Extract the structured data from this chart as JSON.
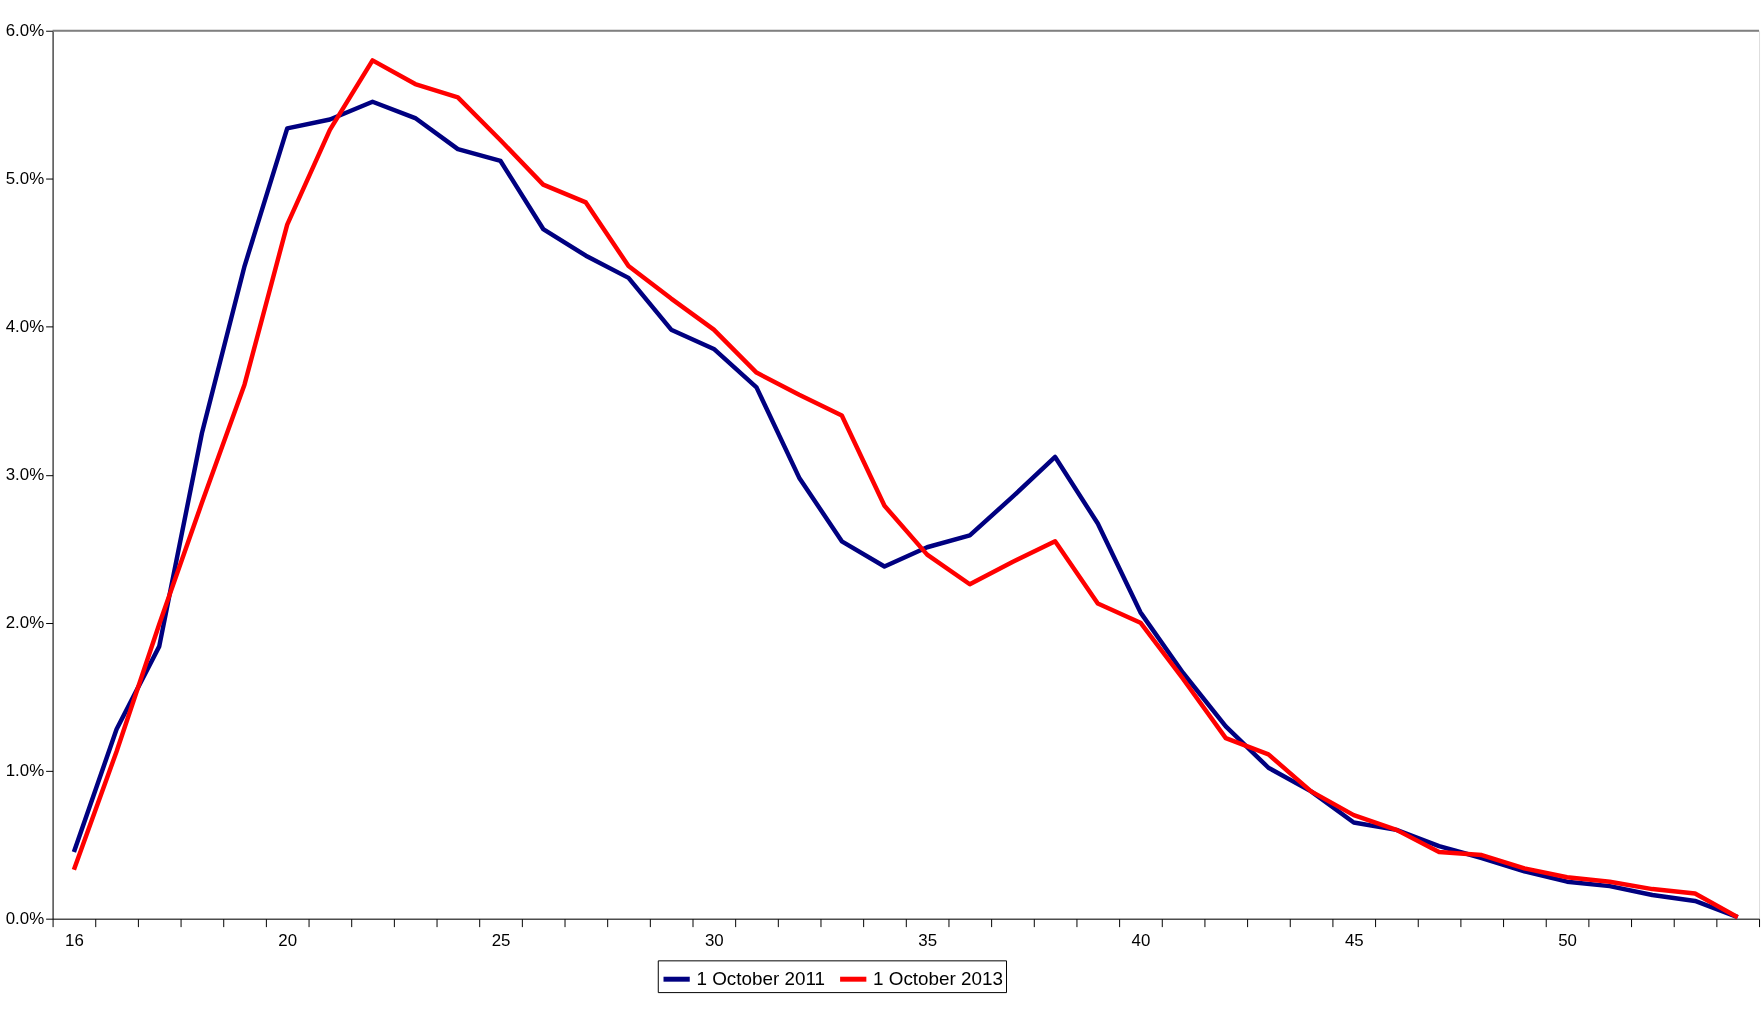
{
  "chart_data": {
    "type": "line",
    "categories": [
      "16",
      null,
      null,
      null,
      null,
      "20",
      null,
      null,
      null,
      null,
      "25",
      null,
      null,
      null,
      null,
      "30",
      null,
      null,
      null,
      null,
      "35",
      null,
      null,
      null,
      null,
      "40",
      null,
      null,
      null,
      null,
      "45",
      null,
      null,
      null,
      null,
      "50",
      null,
      null,
      null,
      null
    ],
    "series": [
      {
        "name": "1 October 2011",
        "color": "#000080",
        "values": [
          0.45,
          1.28,
          1.84,
          3.28,
          4.41,
          5.34,
          5.4,
          5.52,
          5.41,
          5.2,
          5.12,
          4.66,
          4.48,
          4.33,
          3.98,
          3.85,
          3.59,
          2.98,
          2.55,
          2.38,
          2.51,
          2.59,
          2.85,
          3.12,
          2.67,
          2.07,
          1.66,
          1.3,
          1.02,
          0.86,
          0.65,
          0.6,
          0.49,
          0.41,
          0.32,
          0.25,
          0.22,
          0.16,
          0.12,
          0.01
        ]
      },
      {
        "name": "1 October 2013",
        "color": "#ff0000",
        "values": [
          0.33,
          1.13,
          1.99,
          2.81,
          3.61,
          4.69,
          5.33,
          5.8,
          5.64,
          5.55,
          5.26,
          4.96,
          4.84,
          4.41,
          4.19,
          3.98,
          3.69,
          3.54,
          3.4,
          2.79,
          2.46,
          2.26,
          2.41,
          2.55,
          2.13,
          2.0,
          1.62,
          1.22,
          1.11,
          0.86,
          0.7,
          0.6,
          0.45,
          0.43,
          0.34,
          0.28,
          0.25,
          0.2,
          0.17,
          0.01
        ]
      }
    ],
    "ylim": [
      0,
      6
    ],
    "yticks": [
      {
        "value": 0,
        "label": "0.0%"
      },
      {
        "value": 1,
        "label": "1.0%"
      },
      {
        "value": 2,
        "label": "2.0%"
      },
      {
        "value": 3,
        "label": "3.0%"
      },
      {
        "value": 4,
        "label": "4.0%"
      },
      {
        "value": 5,
        "label": "5.0%"
      },
      {
        "value": 6,
        "label": "6.0%"
      }
    ],
    "grid": false,
    "legend": "bottom",
    "marker": "none",
    "line_style": "solid"
  }
}
